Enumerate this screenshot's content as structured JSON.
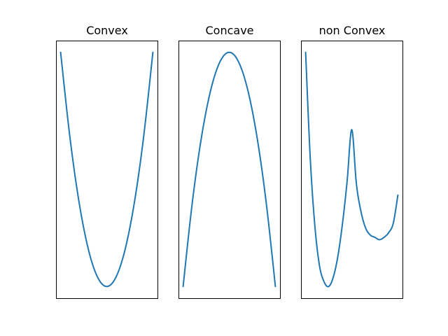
{
  "chart_data": [
    {
      "type": "line",
      "title": "Convex",
      "xlabel": "",
      "ylabel": "",
      "xticks": false,
      "yticks": false,
      "grid": false,
      "xlim": [
        -1.1,
        1.1
      ],
      "ylim": [
        -0.05,
        1.05
      ],
      "series": [
        {
          "color": "#1f77b4",
          "x": [
            -1.0,
            -0.8,
            -0.6,
            -0.4,
            -0.2,
            0.0,
            0.2,
            0.4,
            0.6,
            0.8,
            1.0
          ],
          "y": [
            1.0,
            0.64,
            0.36,
            0.16,
            0.04,
            0.0,
            0.04,
            0.16,
            0.36,
            0.64,
            1.0
          ]
        }
      ]
    },
    {
      "type": "line",
      "title": "Concave",
      "xlabel": "",
      "ylabel": "",
      "xticks": false,
      "yticks": false,
      "grid": false,
      "xlim": [
        -1.1,
        1.1
      ],
      "ylim": [
        -0.05,
        1.05
      ],
      "series": [
        {
          "color": "#1f77b4",
          "x": [
            -1.0,
            -0.8,
            -0.6,
            -0.4,
            -0.2,
            0.0,
            0.2,
            0.4,
            0.6,
            0.8,
            1.0
          ],
          "y": [
            0.0,
            0.36,
            0.64,
            0.84,
            0.96,
            1.0,
            0.96,
            0.84,
            0.64,
            0.36,
            0.0
          ]
        }
      ]
    },
    {
      "type": "line",
      "title": "non Convex",
      "xlabel": "",
      "ylabel": "",
      "xticks": false,
      "yticks": false,
      "grid": false,
      "xlim": [
        -0.1,
        2.1
      ],
      "ylim": [
        -0.05,
        1.05
      ],
      "series": [
        {
          "color": "#1f77b4",
          "x": [
            0.0,
            0.1,
            0.2,
            0.3,
            0.4,
            0.5,
            0.6,
            0.7,
            0.8,
            0.9,
            1.0,
            1.1,
            1.2,
            1.3,
            1.4,
            1.5,
            1.6,
            1.7,
            1.8,
            1.9,
            2.0
          ],
          "y": [
            1.0,
            0.55,
            0.26,
            0.09,
            0.02,
            0.0,
            0.04,
            0.13,
            0.27,
            0.45,
            0.67,
            0.44,
            0.32,
            0.25,
            0.22,
            0.21,
            0.2,
            0.21,
            0.23,
            0.27,
            0.39
          ]
        }
      ]
    }
  ]
}
